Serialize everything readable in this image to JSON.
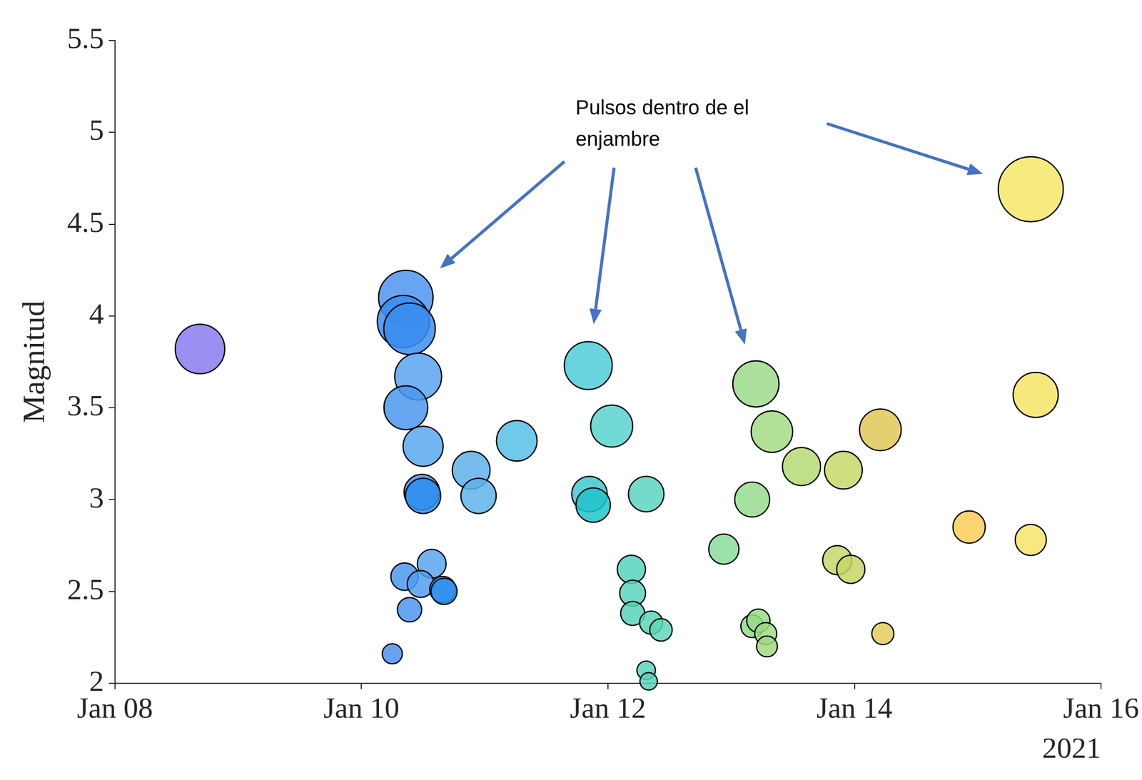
{
  "chart_data": {
    "type": "bubble",
    "ylabel": "Magnitud",
    "xlabel": "2021",
    "annotations": [
      "Pulsos dentro de el enjambre"
    ],
    "x": [
      8.69,
      10.36,
      10.34,
      10.39,
      10.46,
      10.36,
      10.5,
      10.49,
      10.5,
      10.89,
      10.95,
      11.26,
      10.57,
      10.35,
      10.48,
      10.66,
      10.67,
      10.39,
      10.25,
      11.84,
      12.03,
      11.85,
      11.88,
      12.31,
      12.19,
      12.2,
      12.2,
      12.35,
      12.43,
      12.31,
      12.33,
      13.2,
      13.33,
      13.57,
      13.91,
      13.17,
      12.94,
      13.86,
      13.97,
      13.17,
      13.22,
      13.28,
      13.29,
      14.21,
      14.23,
      14.93,
      15.43,
      15.47,
      15.43
    ],
    "values": [
      3.82,
      4.1,
      3.97,
      3.93,
      3.67,
      3.5,
      3.29,
      3.04,
      3.02,
      3.16,
      3.02,
      3.32,
      2.65,
      2.58,
      2.54,
      2.51,
      2.5,
      2.4,
      2.16,
      3.73,
      3.4,
      3.03,
      2.97,
      3.03,
      2.62,
      2.49,
      2.38,
      2.33,
      2.29,
      2.07,
      2.01,
      3.63,
      3.37,
      3.18,
      3.16,
      3.0,
      2.73,
      2.67,
      2.62,
      2.31,
      2.34,
      2.27,
      2.2,
      3.38,
      2.27,
      2.85,
      4.69,
      3.57,
      2.78
    ],
    "colors": [
      "#8a7cf0",
      "#4f94f0",
      "#3a8ef0",
      "#3a8ef0",
      "#5aa4f0",
      "#4a98ee",
      "#5aa8ee",
      "#3f94ee",
      "#2f8ef0",
      "#5eb0ea",
      "#5eb4ea",
      "#58bfe6",
      "#5aa6f0",
      "#4a98ee",
      "#50a0ee",
      "#3a9aee",
      "#2e90ee",
      "#4e96ee",
      "#4e90ee",
      "#50ccd8",
      "#58d4cc",
      "#40c8d0",
      "#20c4cc",
      "#5cd4c0",
      "#58d2c0",
      "#5ad4c0",
      "#58d2bc",
      "#5cd6b8",
      "#60d6b6",
      "#5cd4bc",
      "#58d2bc",
      "#9cdc8c",
      "#a4dc84",
      "#b4da74",
      "#c8d868",
      "#98dc8e",
      "#88dc9c",
      "#c4d86a",
      "#c8d664",
      "#94da8c",
      "#98da88",
      "#a0da84",
      "#a0da80",
      "#e0c858",
      "#e4cc5c",
      "#fccc58",
      "#f6e668",
      "#f6e464",
      "#f6e468"
    ],
    "xlim": [
      8,
      16
    ],
    "xticks": [
      {
        "value": 8,
        "label": "Jan 08"
      },
      {
        "value": 10,
        "label": "Jan 10"
      },
      {
        "value": 12,
        "label": "Jan 12"
      },
      {
        "value": 14,
        "label": "Jan 14"
      },
      {
        "value": 16,
        "label": "Jan 16"
      }
    ],
    "ylim": [
      2,
      5.5
    ],
    "yticks": [
      2,
      2.5,
      3,
      3.5,
      4,
      4.5,
      5,
      5.5
    ],
    "grid": false
  }
}
